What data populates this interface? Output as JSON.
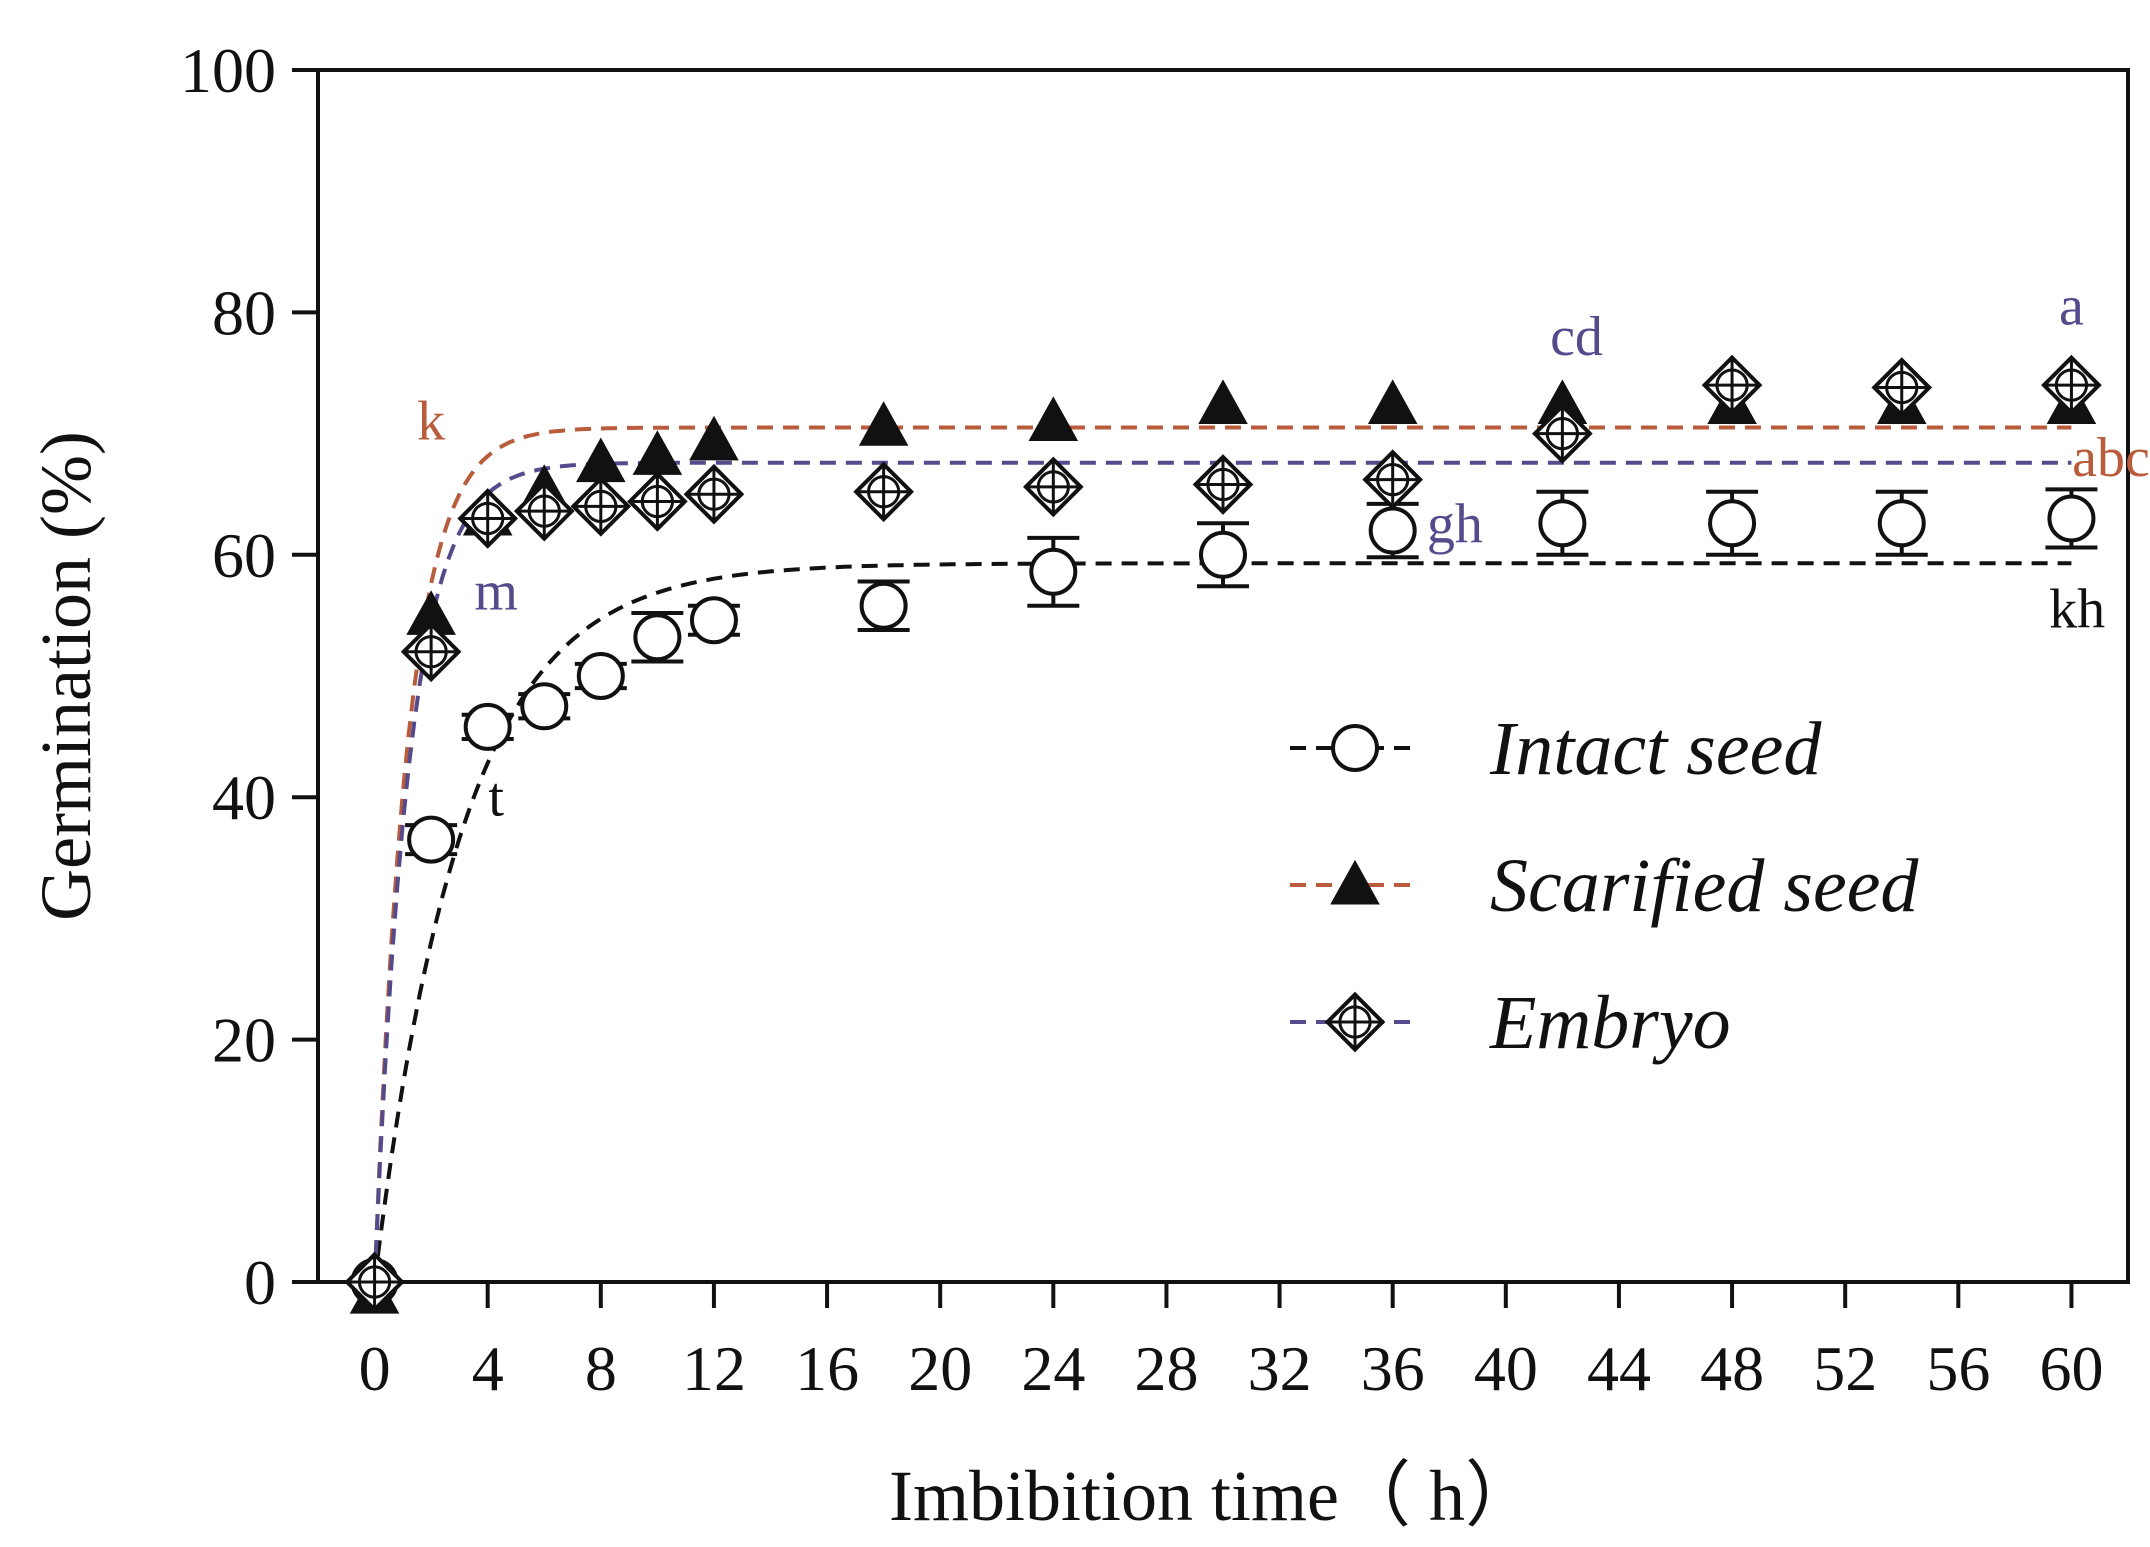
{
  "chart_data": {
    "type": "scatter",
    "title": "",
    "xlabel": "Imbibition time（ h）",
    "ylabel": "Germination (%)",
    "xlim": [
      -2,
      62
    ],
    "ylim": [
      0,
      100
    ],
    "xticks": [
      0,
      4,
      8,
      12,
      16,
      20,
      24,
      28,
      32,
      36,
      40,
      44,
      48,
      52,
      56,
      60
    ],
    "yticks": [
      0,
      20,
      40,
      60,
      80,
      100
    ],
    "legend_position": "center-right",
    "series": [
      {
        "name": "Intact seed",
        "marker": "open-circle",
        "line_color": "#111111",
        "x": [
          0,
          2,
          4,
          6,
          8,
          10,
          12,
          18,
          24,
          30,
          36,
          42,
          48,
          54,
          60
        ],
        "y": [
          0,
          36.5,
          45.8,
          47.5,
          50.0,
          53.2,
          54.6,
          55.8,
          58.6,
          60.0,
          62.0,
          62.6,
          62.6,
          62.6,
          63.0
        ],
        "err": [
          0,
          1.2,
          1.0,
          1.0,
          1.0,
          2.0,
          1.2,
          2.0,
          2.8,
          2.6,
          2.2,
          2.6,
          2.6,
          2.6,
          2.4
        ],
        "fit": {
          "asymptote": 59.3,
          "rate": 0.32
        }
      },
      {
        "name": "Scarified seed",
        "marker": "filled-triangle",
        "line_color": "#b85c3c",
        "x": [
          0,
          2,
          4,
          6,
          8,
          10,
          12,
          18,
          24,
          30,
          36,
          42,
          48,
          54,
          60
        ],
        "y": [
          -1.0,
          55.0,
          63.2,
          65.4,
          67.6,
          68.2,
          69.4,
          70.6,
          71.0,
          72.4,
          72.4,
          72.4,
          72.4,
          72.4,
          72.4
        ],
        "err": [
          0,
          0,
          0,
          0,
          0,
          0,
          0,
          0,
          0,
          0,
          0,
          0,
          0,
          0,
          0
        ],
        "fit": {
          "asymptote": 70.5,
          "rate": 0.85
        }
      },
      {
        "name": "Embryo",
        "marker": "crossed-diamond",
        "line_color": "#554a8c",
        "x": [
          0,
          2,
          4,
          6,
          8,
          10,
          12,
          18,
          24,
          30,
          36,
          42,
          48,
          54,
          60
        ],
        "y": [
          0,
          52.0,
          63.0,
          63.6,
          64.0,
          64.4,
          65.0,
          65.2,
          65.6,
          65.8,
          66.2,
          70.0,
          74.0,
          73.8,
          74.0
        ],
        "err": [
          0,
          0,
          0,
          0,
          0,
          0,
          0,
          0,
          0,
          0,
          0,
          0,
          0,
          0,
          0
        ],
        "fit": {
          "asymptote": 67.6,
          "rate": 0.82
        }
      }
    ],
    "annotations": [
      {
        "text": "k",
        "x": 2.0,
        "y": 69.5,
        "color": "#b85c3c"
      },
      {
        "text": "m",
        "x": 4.3,
        "y": 55.5,
        "color": "#554a8c"
      },
      {
        "text": "t",
        "x": 4.3,
        "y": 38.5,
        "color": "#111111"
      },
      {
        "text": "cd",
        "x": 42.5,
        "y": 76.5,
        "color": "#554a8c"
      },
      {
        "text": "gh",
        "x": 38.2,
        "y": 61.0,
        "color": "#554a8c"
      },
      {
        "text": "a",
        "x": 60.0,
        "y": 79.0,
        "color": "#554a8c"
      },
      {
        "text": "abc",
        "x": 61.4,
        "y": 66.5,
        "color": "#b85c3c"
      },
      {
        "text": "kh",
        "x": 60.2,
        "y": 54.0,
        "color": "#111111"
      }
    ]
  }
}
